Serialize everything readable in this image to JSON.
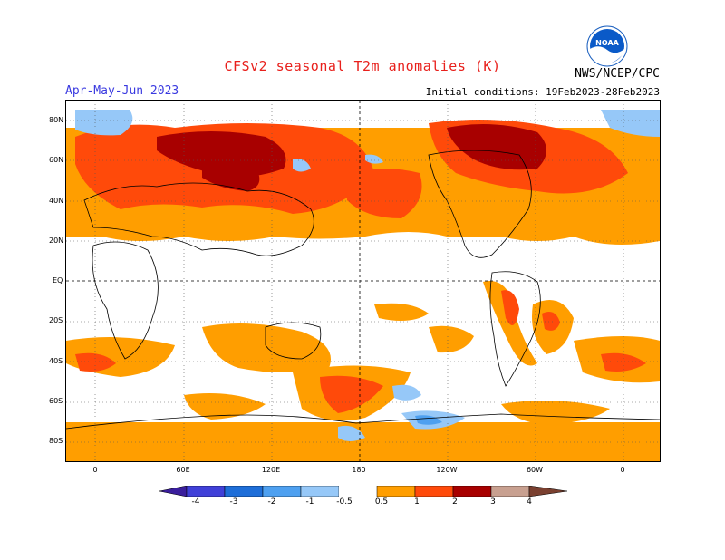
{
  "header": {
    "title": "CFSv2 seasonal T2m anomalies (K)",
    "period": "Apr-May-Jun 2023",
    "initial_conditions": "Initial conditions: 19Feb2023-28Feb2023",
    "agency": "NWS/NCEP/CPC",
    "logo_text": "NOAA",
    "logo_icon": "noaa-logo"
  },
  "map": {
    "lat_labels": [
      "80N",
      "60N",
      "40N",
      "20N",
      "EQ",
      "20S",
      "40S",
      "60S",
      "80S"
    ],
    "lon_labels": [
      "0",
      "60E",
      "120E",
      "180",
      "120W",
      "60W",
      "0"
    ]
  },
  "legend": {
    "labels": [
      "-4",
      "-3",
      "-2",
      "-1",
      "-0.5",
      "0.5",
      "1",
      "2",
      "3",
      "4"
    ],
    "colors": {
      "lt_neg4": "#3a1e9c",
      "neg4_neg3": "#4040d8",
      "neg3_neg2": "#1e6ed8",
      "neg2_neg1": "#4ea0f0",
      "neg1_neg05": "#96c8f8",
      "neutral": "#ffffff",
      "p05_1": "#ff9e00",
      "p1_2": "#ff4a0a",
      "p2_3": "#a80000",
      "p3_4": "#c8a090",
      "gt4": "#7a4030"
    }
  }
}
